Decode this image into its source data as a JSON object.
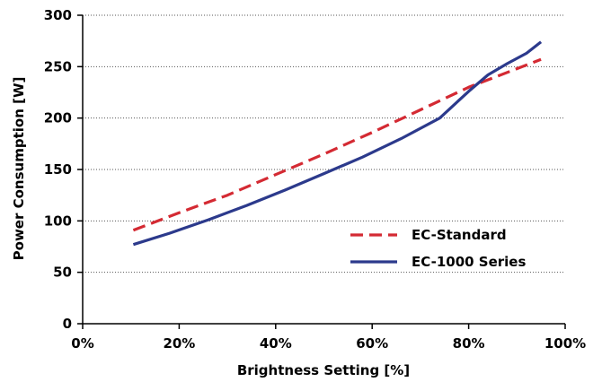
{
  "chart_data": {
    "type": "line",
    "title": "",
    "xlabel": "Brightness Setting [%]",
    "ylabel": "Power Consumption [W]",
    "xlim": [
      0,
      100
    ],
    "ylim": [
      0,
      300
    ],
    "x_ticks": [
      0,
      20,
      40,
      60,
      80,
      100
    ],
    "x_tick_labels": [
      "0%",
      "20%",
      "40%",
      "60%",
      "80%",
      "100%"
    ],
    "y_ticks": [
      0,
      50,
      100,
      150,
      200,
      250,
      300
    ],
    "y_tick_labels": [
      "0",
      "50",
      "100",
      "150",
      "200",
      "250",
      "300"
    ],
    "grid": "horizontal dotted",
    "legend_position": "lower-right",
    "series": [
      {
        "name": "EC-Standard",
        "color": "#d42a33",
        "style": "dashed",
        "x": [
          10.5,
          20,
          30,
          40,
          50,
          60,
          70,
          80,
          90,
          95
        ],
        "y": [
          91,
          108,
          125,
          145,
          165,
          186,
          208,
          230,
          248,
          257
        ]
      },
      {
        "name": "EC-1000 Series",
        "color": "#2c3a8c",
        "style": "solid",
        "x": [
          10.5,
          18,
          26,
          34,
          42,
          50,
          58,
          66,
          74,
          80,
          84,
          88,
          92,
          95
        ],
        "y": [
          77,
          88,
          101,
          115,
          130,
          146,
          162,
          180,
          200,
          226,
          242,
          253,
          263,
          274
        ]
      }
    ]
  }
}
